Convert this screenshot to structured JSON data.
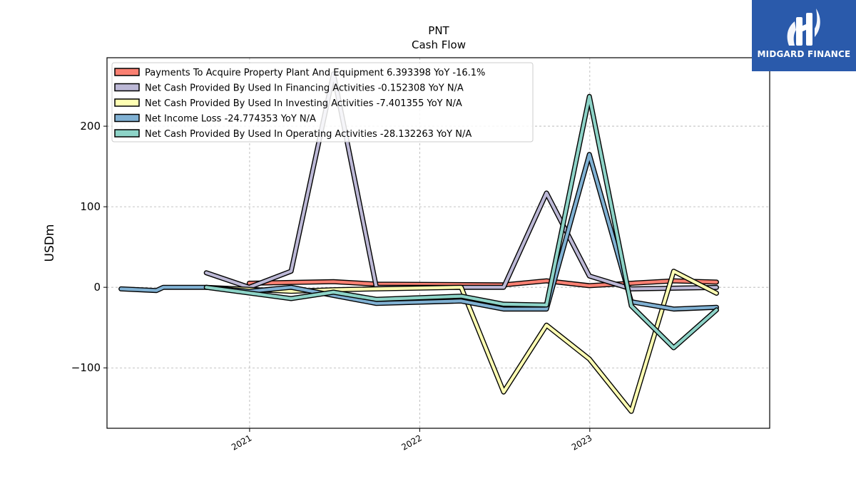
{
  "chart_data": {
    "type": "line",
    "title": "PNT",
    "subtitle": "Cash Flow",
    "xlabel": "",
    "ylabel": "USDm",
    "ylim": [
      -175,
      285
    ],
    "xlim": [
      "2020-03-01",
      "2024-01-22"
    ],
    "x_ticks": [
      "2021",
      "2022",
      "2023"
    ],
    "y_ticks": [
      -100,
      0,
      100,
      200
    ],
    "y_tick_labels": [
      "−100",
      "0",
      "100",
      "200"
    ],
    "grid": true,
    "legend_position": "top-left",
    "series": [
      {
        "name": "Payments To Acquire Property Plant And Equipment  6.393398 YoY -16.1%",
        "color": "#fa8072",
        "points": [
          {
            "x": "2020-12-31",
            "y": 5
          },
          {
            "x": "2021-06-30",
            "y": 7
          },
          {
            "x": "2021-09-30",
            "y": 4
          },
          {
            "x": "2022-06-30",
            "y": 3
          },
          {
            "x": "2022-09-30",
            "y": 8
          },
          {
            "x": "2022-12-31",
            "y": 2
          },
          {
            "x": "2023-06-30",
            "y": 8
          },
          {
            "x": "2023-09-30",
            "y": 6.4
          }
        ]
      },
      {
        "name": "Net Cash Provided By Used In Financing Activities  -0.152308 YoY N/A",
        "color": "#bcb8d6",
        "points": [
          {
            "x": "2020-09-30",
            "y": 18
          },
          {
            "x": "2020-12-31",
            "y": 0
          },
          {
            "x": "2021-03-31",
            "y": 20
          },
          {
            "x": "2021-06-30",
            "y": 265
          },
          {
            "x": "2021-09-30",
            "y": 0
          },
          {
            "x": "2022-06-30",
            "y": 0
          },
          {
            "x": "2022-09-30",
            "y": 117
          },
          {
            "x": "2022-12-31",
            "y": 14
          },
          {
            "x": "2023-03-31",
            "y": -2
          },
          {
            "x": "2023-09-30",
            "y": -0.2
          }
        ]
      },
      {
        "name": "Net Cash Provided By Used In Investing Activities  -7.401355 YoY N/A",
        "color": "#ffffb3",
        "points": [
          {
            "x": "2020-09-30",
            "y": 0
          },
          {
            "x": "2021-03-31",
            "y": -5
          },
          {
            "x": "2021-06-30",
            "y": -3
          },
          {
            "x": "2021-09-30",
            "y": -2
          },
          {
            "x": "2022-03-31",
            "y": 0
          },
          {
            "x": "2022-06-30",
            "y": -130
          },
          {
            "x": "2022-09-30",
            "y": -47
          },
          {
            "x": "2022-12-31",
            "y": -89
          },
          {
            "x": "2023-03-31",
            "y": -154
          },
          {
            "x": "2023-06-30",
            "y": 20
          },
          {
            "x": "2023-09-30",
            "y": -7.4
          }
        ]
      },
      {
        "name": "Net Income Loss  -24.774353 YoY N/A",
        "color": "#80b1d3",
        "points": [
          {
            "x": "2020-03-31",
            "y": -2
          },
          {
            "x": "2020-06-15",
            "y": -4
          },
          {
            "x": "2020-06-30",
            "y": 0
          },
          {
            "x": "2020-09-30",
            "y": 0
          },
          {
            "x": "2020-12-31",
            "y": -5
          },
          {
            "x": "2021-03-31",
            "y": 0
          },
          {
            "x": "2021-06-30",
            "y": -10
          },
          {
            "x": "2021-09-30",
            "y": -20
          },
          {
            "x": "2022-03-31",
            "y": -17
          },
          {
            "x": "2022-06-30",
            "y": -27
          },
          {
            "x": "2022-09-30",
            "y": -27
          },
          {
            "x": "2022-12-31",
            "y": 165
          },
          {
            "x": "2023-03-31",
            "y": -18
          },
          {
            "x": "2023-06-30",
            "y": -27
          },
          {
            "x": "2023-09-30",
            "y": -24.8
          }
        ]
      },
      {
        "name": "Net Cash Provided By Used In Operating Activities  -28.132263 YoY N/A",
        "color": "#8dd3c7",
        "points": [
          {
            "x": "2020-09-30",
            "y": 0
          },
          {
            "x": "2021-03-31",
            "y": -14
          },
          {
            "x": "2021-06-30",
            "y": -6
          },
          {
            "x": "2021-09-30",
            "y": -15
          },
          {
            "x": "2022-03-31",
            "y": -11
          },
          {
            "x": "2022-06-30",
            "y": -21
          },
          {
            "x": "2022-09-30",
            "y": -22
          },
          {
            "x": "2022-12-31",
            "y": 237
          },
          {
            "x": "2023-03-31",
            "y": -23
          },
          {
            "x": "2023-06-30",
            "y": -75
          },
          {
            "x": "2023-09-30",
            "y": -28.1
          }
        ]
      }
    ]
  },
  "logo": {
    "text": "MIDGARD FINANCE",
    "background": "#2a5aab",
    "icon": "midgard-logo-icon"
  }
}
